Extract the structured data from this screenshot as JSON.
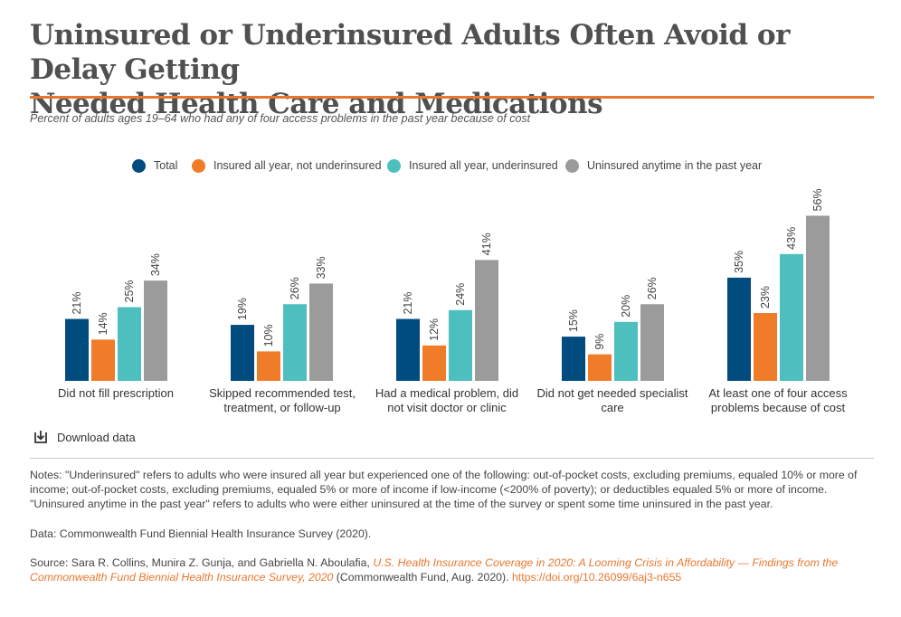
{
  "title_line1": "Uninsured or Underinsured Adults Often Avoid or Delay Getting",
  "title_line2": "Needed Health Care and Medications",
  "subtitle": "Percent of adults ages 19–64 who had any of four access problems in the past year because of cost",
  "download_label": "Download data",
  "download_icon": "download-icon",
  "notes": "Notes: \"Underinsured\" refers to adults who were insured all year but experienced one of the following: out-of-pocket costs, excluding premiums, equaled 10% or more of income; out-of-pocket costs, excluding premiums, equaled 5% or more of income if low-income (<200% of poverty); or deductibles equaled 5% or more of income. \"Uninsured anytime in the past year\" refers to adults who were either uninsured at the time of the survey or spent some time uninsured in the past year.",
  "data_source": "Data: Commonwealth Fund Biennial Health Insurance Survey (2020).",
  "source": {
    "prefix": "Source: Sara R. Collins, Munira Z. Gunja, and Gabriella N. Aboulafia, ",
    "citation": "U.S. Health Insurance Coverage in 2020: A Looming Crisis in Affordability — Findings from the Commonwealth Fund Biennial Health Insurance Survey, 2020",
    "middle": " (Commonwealth Fund, Aug. 2020). ",
    "doi": "https://doi.org/10.26099/6aj3-n655"
  },
  "colors": {
    "title": "#505050",
    "accent": "#e8772e"
  },
  "chart_data": {
    "type": "bar",
    "title": "",
    "xlabel": "",
    "ylabel": "",
    "ylim": [
      0,
      60
    ],
    "legend_position": "top",
    "grid": false,
    "categories": [
      [
        "Did not fill prescription"
      ],
      [
        "Skipped recommended test,",
        "treatment, or follow-up"
      ],
      [
        "Had a medical problem, did",
        "not visit doctor or clinic"
      ],
      [
        "Did not get needed specialist",
        "care"
      ],
      [
        "At least one of four access",
        "problems because of cost"
      ]
    ],
    "series": [
      {
        "name": "Total",
        "color": "#004c7f",
        "values": [
          21,
          19,
          21,
          15,
          35
        ],
        "labels": [
          "21%",
          "19%",
          "21%",
          "15%",
          "35%"
        ]
      },
      {
        "name": "Insured all year, not underinsured",
        "color": "#f07c2a",
        "values": [
          14,
          10,
          12,
          9,
          23
        ],
        "labels": [
          "14%",
          "10%",
          "12%",
          "9%",
          "23%"
        ]
      },
      {
        "name": "Insured all year, underinsured",
        "color": "#4dbfbf",
        "values": [
          25,
          26,
          24,
          20,
          43
        ],
        "labels": [
          "25%",
          "26%",
          "24%",
          "20%",
          "43%"
        ]
      },
      {
        "name": "Uninsured anytime in the past year",
        "color": "#9b9b9b",
        "values": [
          34,
          33,
          41,
          26,
          56
        ],
        "labels": [
          "34%",
          "33%",
          "41%",
          "26%",
          "56%"
        ]
      }
    ]
  }
}
